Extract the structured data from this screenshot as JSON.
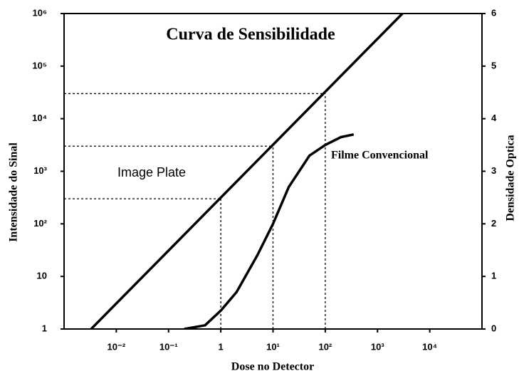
{
  "chart_data": {
    "type": "line",
    "title": "Curva de Sensibilidade",
    "xlabel": "Dose no Detector",
    "ylabel": "Intensidade do Sinal",
    "y2label": "Densidade Optica",
    "xlog": true,
    "ylog": true,
    "xlim": [
      0.001,
      100000
    ],
    "ylim": [
      1,
      1000000
    ],
    "y2lim": [
      0,
      6
    ],
    "xticks": [
      {
        "value": 0.01,
        "label": "10⁻²"
      },
      {
        "value": 0.1,
        "label": "10⁻¹"
      },
      1,
      {
        "value": 10,
        "label": "10¹"
      },
      {
        "value": 100,
        "label": "10²"
      },
      {
        "value": 1000,
        "label": "10³"
      },
      {
        "value": 10000,
        "label": "10⁴"
      }
    ],
    "yticks": [
      1,
      10,
      {
        "value": 100,
        "label": "10²"
      },
      {
        "value": 1000,
        "label": "10³"
      },
      {
        "value": 10000,
        "label": "10⁴"
      },
      {
        "value": 100000,
        "label": "10⁵"
      },
      {
        "value": 1000000,
        "label": "10⁶"
      }
    ],
    "y2ticks": [
      0,
      1,
      2,
      3,
      4,
      5,
      6
    ],
    "series": [
      {
        "name": "Image Plate",
        "color": "#000000",
        "x": [
          0.0033,
          3000
        ],
        "values": [
          1,
          1000000
        ]
      },
      {
        "name": "Filme Convencional",
        "color": "#000000",
        "axis": "y2",
        "x": [
          0.2,
          0.5,
          1,
          2,
          5,
          10,
          20,
          50,
          100,
          200,
          350
        ],
        "values": [
          0,
          0.07,
          0.35,
          0.7,
          1.4,
          2.0,
          2.7,
          3.3,
          3.5,
          3.65,
          3.7
        ]
      }
    ],
    "reference_points": {
      "x": [
        1,
        10,
        100
      ],
      "y": [
        300,
        3000,
        30000
      ]
    }
  }
}
